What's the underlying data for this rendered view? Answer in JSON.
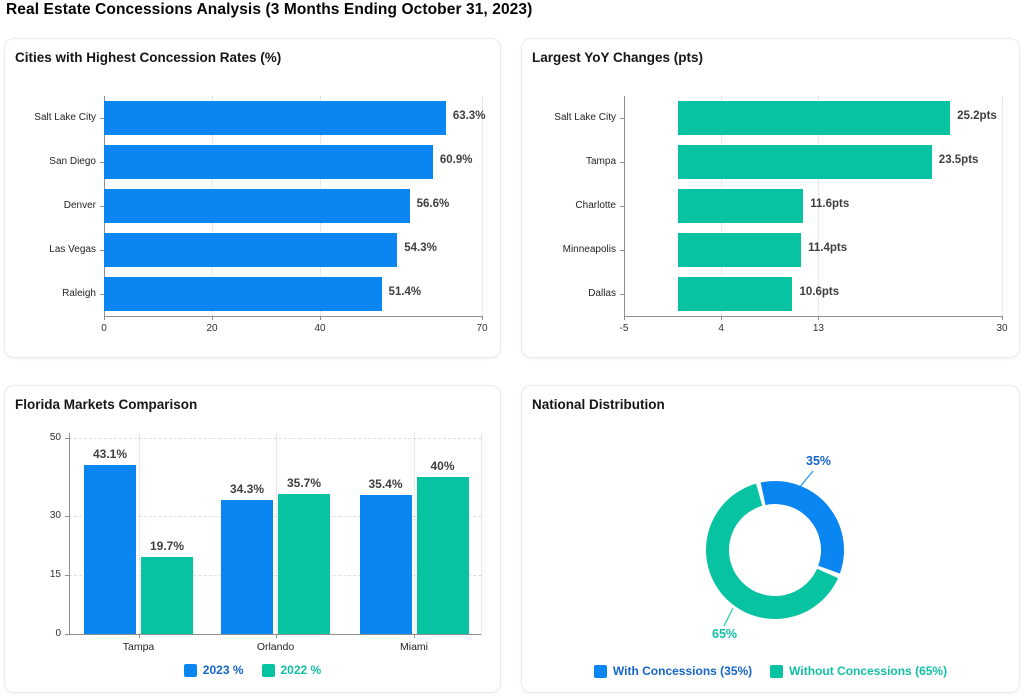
{
  "page": {
    "title": "Real Estate Concessions Analysis (3 Months Ending October 31, 2023)"
  },
  "colors": {
    "blue": "#0a86f3",
    "green": "#07c3a2",
    "blue_text": "#1565c8",
    "green_text": "#10bfa5",
    "label_gray": "#3f3f3f"
  },
  "chart_data": [
    {
      "id": "concession-rates",
      "type": "bar",
      "orientation": "horizontal",
      "title": "Cities with Highest Concession Rates (%)",
      "categories": [
        "Salt Lake City",
        "San Diego",
        "Denver",
        "Las Vegas",
        "Raleigh"
      ],
      "values": [
        63.3,
        60.9,
        56.6,
        54.3,
        51.4
      ],
      "value_labels": [
        "63.3%",
        "60.9%",
        "56.6%",
        "54.3%",
        "51.4%"
      ],
      "xlim": [
        0,
        70
      ],
      "xticks": [
        0,
        20,
        40,
        70
      ],
      "bar_base": 0,
      "bar_color": "#0a86f3",
      "grid": "dotted-vertical",
      "legend": null
    },
    {
      "id": "yoy-changes",
      "type": "bar",
      "orientation": "horizontal",
      "title": "Largest YoY Changes (pts)",
      "categories": [
        "Salt Lake City",
        "Tampa",
        "Charlotte",
        "Minneapolis",
        "Dallas"
      ],
      "values": [
        25.2,
        23.5,
        11.6,
        11.4,
        10.6
      ],
      "value_labels": [
        "25.2pts",
        "23.5pts",
        "11.6pts",
        "11.4pts",
        "10.6pts"
      ],
      "xlim": [
        -5,
        30
      ],
      "xticks": [
        -5,
        4,
        13,
        30
      ],
      "bar_base": 0,
      "bar_color": "#07c3a2",
      "grid": "dotted-vertical",
      "legend": null
    },
    {
      "id": "florida-markets",
      "type": "bar",
      "orientation": "vertical",
      "title": "Florida Markets Comparison",
      "categories": [
        "Tampa",
        "Orlando",
        "Miami"
      ],
      "series": [
        {
          "name": "2023 %",
          "color": "#0a86f3",
          "text_color": "#1565c8",
          "values": [
            43.1,
            34.3,
            35.4
          ],
          "value_labels": [
            "43.1%",
            "34.3%",
            "35.4%"
          ]
        },
        {
          "name": "2022 %",
          "color": "#07c3a2",
          "text_color": "#10bfa5",
          "values": [
            19.7,
            35.7,
            40
          ],
          "value_labels": [
            "19.7%",
            "35.7%",
            "40%"
          ]
        }
      ],
      "ylim": [
        0,
        50
      ],
      "yticks": [
        0,
        15,
        30,
        50
      ],
      "grid": "dashed-horizontal-and-dotted-vertical",
      "legend_position": "bottom"
    },
    {
      "id": "national-distribution",
      "type": "pie",
      "title": "National Distribution",
      "donut": true,
      "slices": [
        {
          "name": "With Concessions",
          "pct": 35,
          "label": "35%",
          "color": "#0a86f3",
          "text_color": "#1565c8",
          "legend": "With Concessions (35%)"
        },
        {
          "name": "Without Concessions",
          "pct": 65,
          "label": "65%",
          "color": "#07c3a2",
          "text_color": "#10bfa5",
          "legend": "Without Concessions (65%)"
        }
      ],
      "legend_position": "bottom"
    }
  ]
}
